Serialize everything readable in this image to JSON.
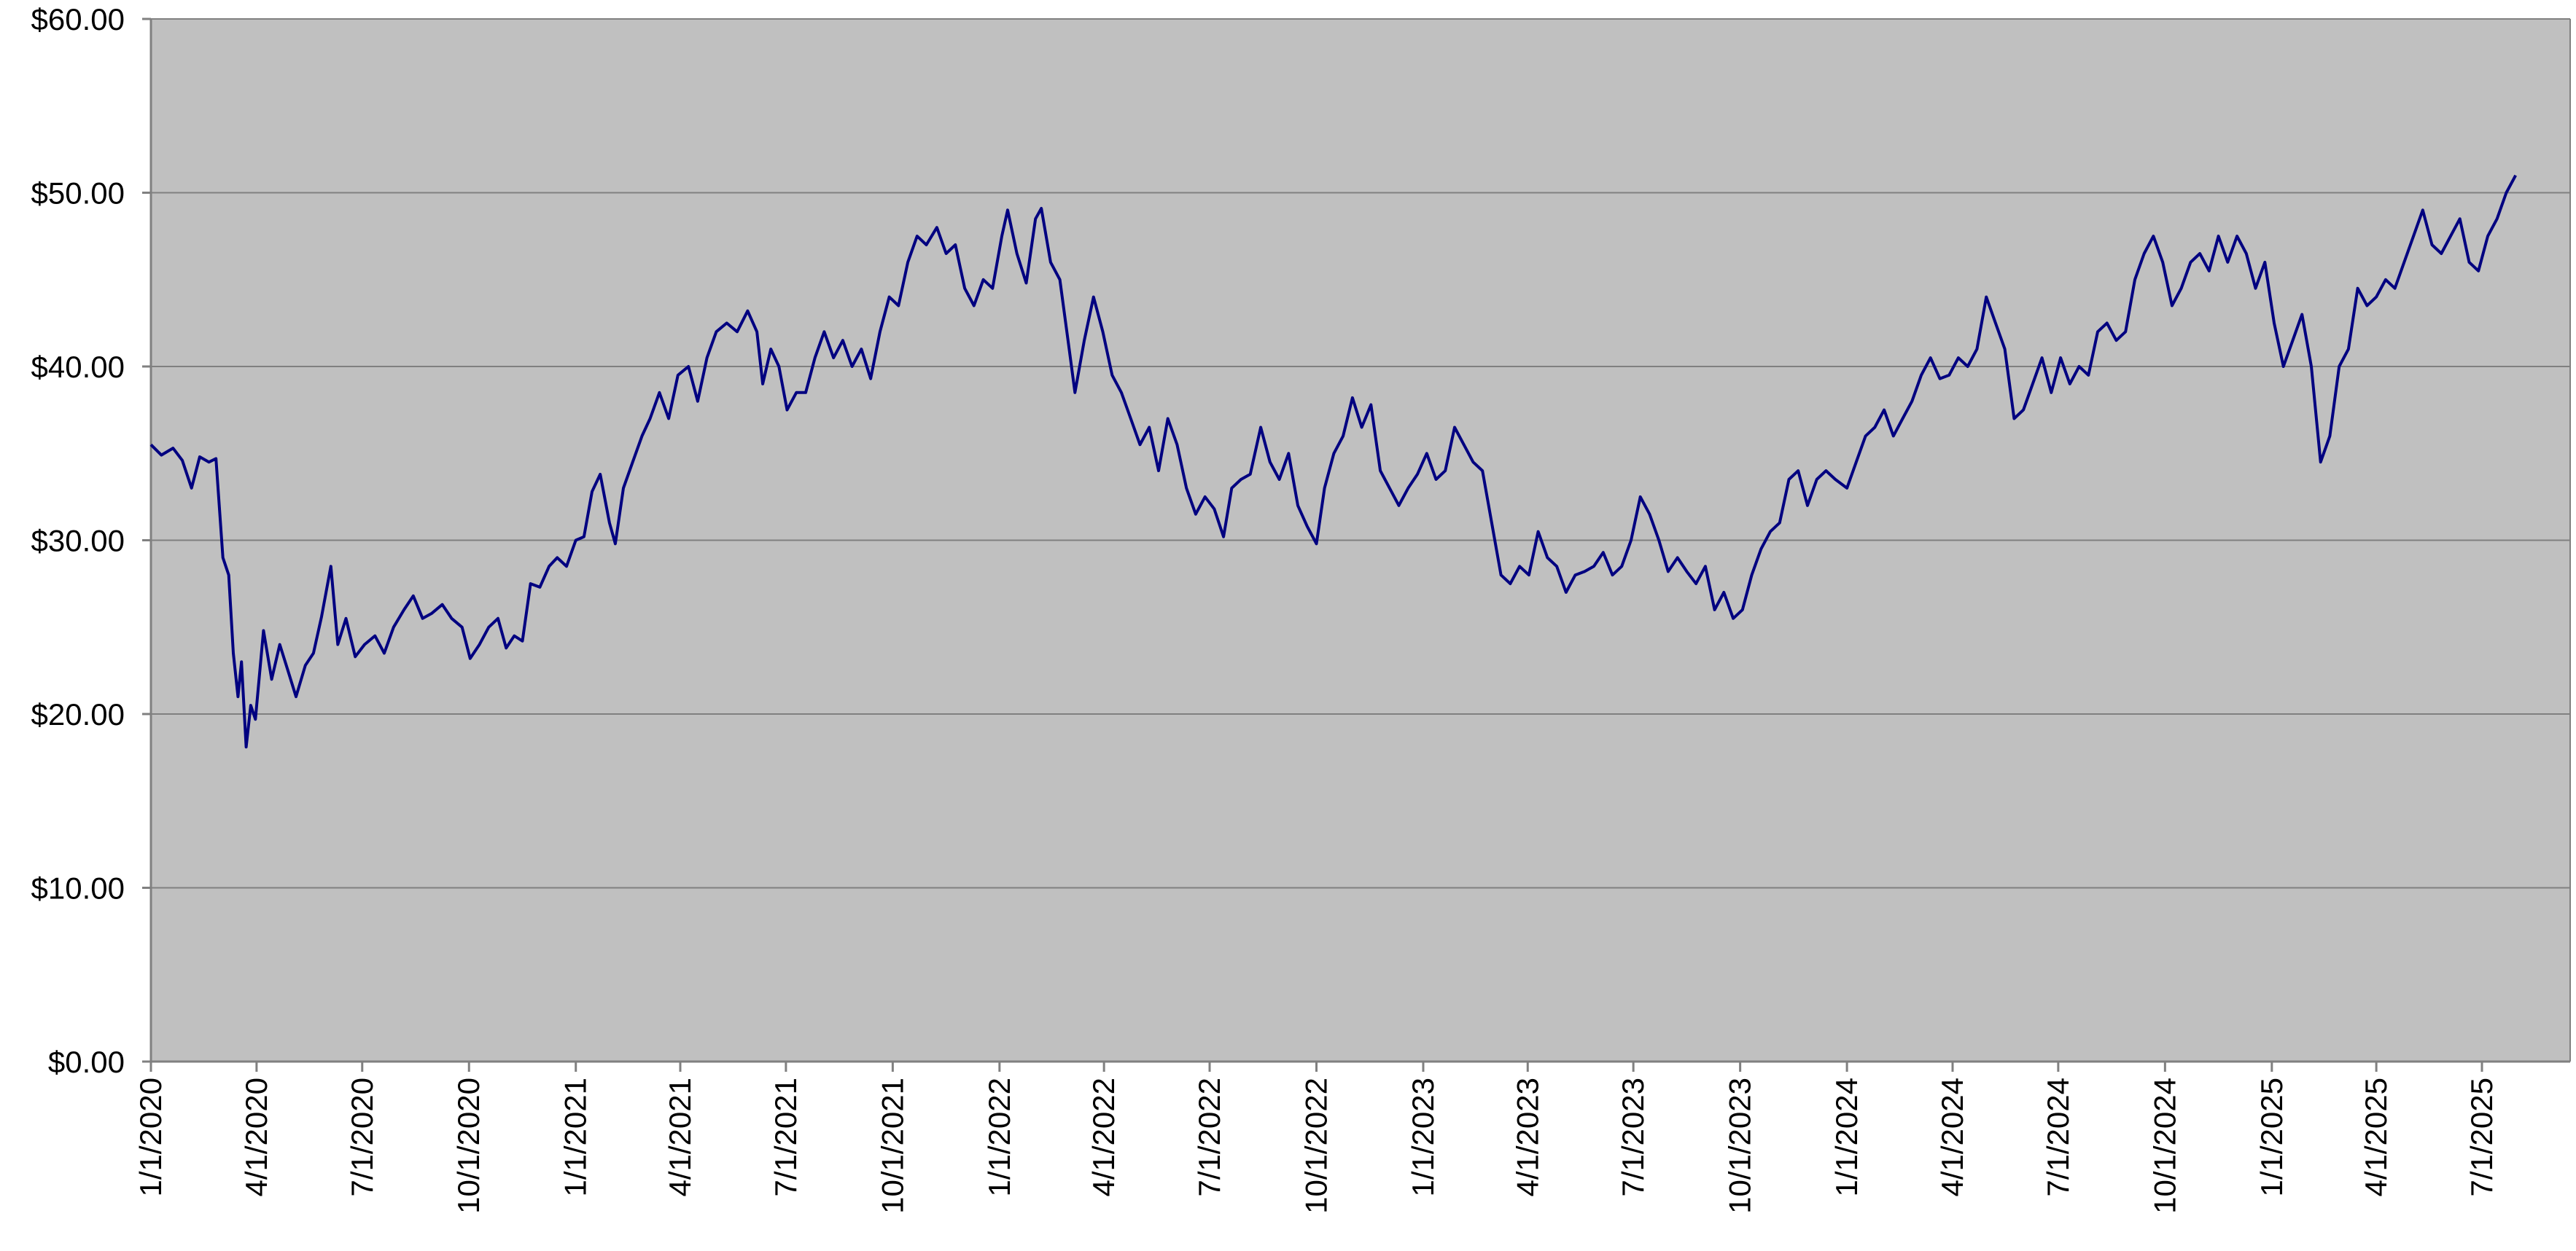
{
  "chart_data": {
    "type": "line",
    "title": "",
    "xlabel": "",
    "ylabel": "",
    "ylim": [
      0,
      60
    ],
    "xlim": [
      "2020-01-01",
      "2025-09-15"
    ],
    "grid": {
      "horizontal": true,
      "vertical": false
    },
    "legend": "none",
    "colors": {
      "plot_background": "#c0c0c0",
      "line": "#000080",
      "grid": "#808080",
      "axis": "#808080"
    },
    "y_tick_labels": [
      "$0.00",
      "$10.00",
      "$20.00",
      "$30.00",
      "$40.00",
      "$50.00",
      "$60.00"
    ],
    "y_ticks": [
      0,
      10,
      20,
      30,
      40,
      50,
      60
    ],
    "x_tick_labels": [
      "1/1/2020",
      "4/1/2020",
      "7/1/2020",
      "10/1/2020",
      "1/1/2021",
      "4/1/2021",
      "7/1/2021",
      "10/1/2021",
      "1/1/2022",
      "4/1/2022",
      "7/1/2022",
      "10/1/2022",
      "1/1/2023",
      "4/1/2023",
      "7/1/2023",
      "10/1/2023",
      "1/1/2024",
      "4/1/2024",
      "7/1/2024",
      "10/1/2024",
      "1/1/2025",
      "4/1/2025",
      "7/1/2025"
    ],
    "x_ticks": [
      "2020-01-01",
      "2020-04-01",
      "2020-07-01",
      "2020-10-01",
      "2021-01-01",
      "2021-04-01",
      "2021-07-01",
      "2021-10-01",
      "2022-01-01",
      "2022-04-01",
      "2022-07-01",
      "2022-10-01",
      "2023-01-01",
      "2023-04-01",
      "2023-07-01",
      "2023-10-01",
      "2024-01-01",
      "2024-04-01",
      "2024-07-01",
      "2024-10-01",
      "2025-01-01",
      "2025-04-01",
      "2025-07-01"
    ],
    "series": [
      {
        "name": "",
        "points": [
          [
            "2020-01-01",
            35.5
          ],
          [
            "2020-01-10",
            34.9
          ],
          [
            "2020-01-20",
            35.3
          ],
          [
            "2020-01-28",
            34.6
          ],
          [
            "2020-02-05",
            33.0
          ],
          [
            "2020-02-12",
            34.8
          ],
          [
            "2020-02-20",
            34.5
          ],
          [
            "2020-02-26",
            34.7
          ],
          [
            "2020-03-03",
            29.0
          ],
          [
            "2020-03-08",
            28.0
          ],
          [
            "2020-03-12",
            23.5
          ],
          [
            "2020-03-16",
            21.0
          ],
          [
            "2020-03-19",
            23.0
          ],
          [
            "2020-03-23",
            18.1
          ],
          [
            "2020-03-27",
            20.5
          ],
          [
            "2020-03-31",
            19.7
          ],
          [
            "2020-04-07",
            24.8
          ],
          [
            "2020-04-14",
            22.0
          ],
          [
            "2020-04-21",
            24.0
          ],
          [
            "2020-04-28",
            22.5
          ],
          [
            "2020-05-05",
            21.0
          ],
          [
            "2020-05-13",
            22.8
          ],
          [
            "2020-05-20",
            23.5
          ],
          [
            "2020-05-27",
            25.6
          ],
          [
            "2020-06-04",
            28.5
          ],
          [
            "2020-06-10",
            24.0
          ],
          [
            "2020-06-17",
            25.5
          ],
          [
            "2020-06-25",
            23.3
          ],
          [
            "2020-07-03",
            24.0
          ],
          [
            "2020-07-12",
            24.5
          ],
          [
            "2020-07-20",
            23.5
          ],
          [
            "2020-07-28",
            25.0
          ],
          [
            "2020-08-06",
            26.0
          ],
          [
            "2020-08-14",
            26.8
          ],
          [
            "2020-08-22",
            25.5
          ],
          [
            "2020-08-30",
            25.8
          ],
          [
            "2020-09-08",
            26.3
          ],
          [
            "2020-09-16",
            25.5
          ],
          [
            "2020-09-25",
            25.0
          ],
          [
            "2020-10-02",
            23.2
          ],
          [
            "2020-10-10",
            24.0
          ],
          [
            "2020-10-18",
            25.0
          ],
          [
            "2020-10-26",
            25.5
          ],
          [
            "2020-11-02",
            23.8
          ],
          [
            "2020-11-09",
            24.5
          ],
          [
            "2020-11-16",
            24.2
          ],
          [
            "2020-11-23",
            27.5
          ],
          [
            "2020-12-01",
            27.3
          ],
          [
            "2020-12-09",
            28.5
          ],
          [
            "2020-12-16",
            29.0
          ],
          [
            "2020-12-24",
            28.5
          ],
          [
            "2021-01-01",
            30.0
          ],
          [
            "2021-01-08",
            30.2
          ],
          [
            "2021-01-15",
            32.8
          ],
          [
            "2021-01-22",
            33.8
          ],
          [
            "2021-01-30",
            31.0
          ],
          [
            "2021-02-04",
            29.8
          ],
          [
            "2021-02-11",
            33.0
          ],
          [
            "2021-02-19",
            34.5
          ],
          [
            "2021-02-27",
            36.0
          ],
          [
            "2021-03-06",
            37.0
          ],
          [
            "2021-03-14",
            38.5
          ],
          [
            "2021-03-22",
            37.0
          ],
          [
            "2021-03-30",
            39.5
          ],
          [
            "2021-04-08",
            40.0
          ],
          [
            "2021-04-16",
            38.0
          ],
          [
            "2021-04-24",
            40.5
          ],
          [
            "2021-05-02",
            42.0
          ],
          [
            "2021-05-11",
            42.5
          ],
          [
            "2021-05-20",
            42.0
          ],
          [
            "2021-05-29",
            43.2
          ],
          [
            "2021-06-06",
            42.0
          ],
          [
            "2021-06-11",
            39.0
          ],
          [
            "2021-06-18",
            41.0
          ],
          [
            "2021-06-25",
            40.0
          ],
          [
            "2021-07-02",
            37.5
          ],
          [
            "2021-07-10",
            38.5
          ],
          [
            "2021-07-18",
            38.5
          ],
          [
            "2021-07-26",
            40.5
          ],
          [
            "2021-08-03",
            42.0
          ],
          [
            "2021-08-11",
            40.5
          ],
          [
            "2021-08-19",
            41.5
          ],
          [
            "2021-08-27",
            40.0
          ],
          [
            "2021-09-04",
            41.0
          ],
          [
            "2021-09-12",
            39.3
          ],
          [
            "2021-09-20",
            42.0
          ],
          [
            "2021-09-28",
            44.0
          ],
          [
            "2021-10-06",
            43.5
          ],
          [
            "2021-10-14",
            46.0
          ],
          [
            "2021-10-22",
            47.5
          ],
          [
            "2021-10-30",
            47.0
          ],
          [
            "2021-11-08",
            48.0
          ],
          [
            "2021-11-16",
            46.5
          ],
          [
            "2021-11-24",
            47.0
          ],
          [
            "2021-12-02",
            44.5
          ],
          [
            "2021-12-10",
            43.5
          ],
          [
            "2021-12-18",
            45.0
          ],
          [
            "2021-12-26",
            44.5
          ],
          [
            "2022-01-03",
            47.5
          ],
          [
            "2022-01-08",
            49.0
          ],
          [
            "2022-01-16",
            46.5
          ],
          [
            "2022-01-24",
            44.8
          ],
          [
            "2022-02-01",
            48.5
          ],
          [
            "2022-02-06",
            49.1
          ],
          [
            "2022-02-14",
            46.0
          ],
          [
            "2022-02-22",
            45.0
          ],
          [
            "2022-03-02",
            41.0
          ],
          [
            "2022-03-07",
            38.5
          ],
          [
            "2022-03-15",
            41.5
          ],
          [
            "2022-03-23",
            44.0
          ],
          [
            "2022-03-31",
            42.0
          ],
          [
            "2022-04-08",
            39.5
          ],
          [
            "2022-04-16",
            38.5
          ],
          [
            "2022-04-24",
            37.0
          ],
          [
            "2022-05-02",
            35.5
          ],
          [
            "2022-05-10",
            36.5
          ],
          [
            "2022-05-18",
            34.0
          ],
          [
            "2022-05-26",
            37.0
          ],
          [
            "2022-06-03",
            35.5
          ],
          [
            "2022-06-11",
            33.0
          ],
          [
            "2022-06-19",
            31.5
          ],
          [
            "2022-06-27",
            32.5
          ],
          [
            "2022-07-05",
            31.8
          ],
          [
            "2022-07-13",
            30.2
          ],
          [
            "2022-07-20",
            33.0
          ],
          [
            "2022-07-28",
            33.5
          ],
          [
            "2022-08-05",
            33.8
          ],
          [
            "2022-08-14",
            36.5
          ],
          [
            "2022-08-22",
            34.5
          ],
          [
            "2022-08-30",
            33.5
          ],
          [
            "2022-09-07",
            35.0
          ],
          [
            "2022-09-15",
            32.0
          ],
          [
            "2022-09-23",
            30.8
          ],
          [
            "2022-10-01",
            29.8
          ],
          [
            "2022-10-08",
            33.0
          ],
          [
            "2022-10-16",
            35.0
          ],
          [
            "2022-10-24",
            36.0
          ],
          [
            "2022-11-01",
            38.2
          ],
          [
            "2022-11-09",
            36.5
          ],
          [
            "2022-11-17",
            37.8
          ],
          [
            "2022-11-25",
            34.0
          ],
          [
            "2022-12-03",
            33.0
          ],
          [
            "2022-12-11",
            32.0
          ],
          [
            "2022-12-19",
            33.0
          ],
          [
            "2022-12-27",
            33.8
          ],
          [
            "2023-01-04",
            35.0
          ],
          [
            "2023-01-12",
            33.5
          ],
          [
            "2023-01-20",
            34.0
          ],
          [
            "2023-01-28",
            36.5
          ],
          [
            "2023-02-05",
            35.5
          ],
          [
            "2023-02-13",
            34.5
          ],
          [
            "2023-02-21",
            34.0
          ],
          [
            "2023-03-01",
            31.0
          ],
          [
            "2023-03-09",
            28.0
          ],
          [
            "2023-03-17",
            27.5
          ],
          [
            "2023-03-25",
            28.5
          ],
          [
            "2023-04-02",
            28.0
          ],
          [
            "2023-04-10",
            30.5
          ],
          [
            "2023-04-18",
            29.0
          ],
          [
            "2023-04-26",
            28.5
          ],
          [
            "2023-05-04",
            27.0
          ],
          [
            "2023-05-12",
            28.0
          ],
          [
            "2023-05-20",
            28.2
          ],
          [
            "2023-05-28",
            28.5
          ],
          [
            "2023-06-05",
            29.3
          ],
          [
            "2023-06-13",
            28.0
          ],
          [
            "2023-06-21",
            28.5
          ],
          [
            "2023-06-29",
            30.0
          ],
          [
            "2023-07-07",
            32.5
          ],
          [
            "2023-07-15",
            31.5
          ],
          [
            "2023-07-23",
            30.0
          ],
          [
            "2023-07-31",
            28.2
          ],
          [
            "2023-08-08",
            29.0
          ],
          [
            "2023-08-16",
            28.2
          ],
          [
            "2023-08-24",
            27.5
          ],
          [
            "2023-09-01",
            28.5
          ],
          [
            "2023-09-09",
            26.0
          ],
          [
            "2023-09-17",
            27.0
          ],
          [
            "2023-09-25",
            25.5
          ],
          [
            "2023-10-03",
            26.0
          ],
          [
            "2023-10-11",
            28.0
          ],
          [
            "2023-10-19",
            29.5
          ],
          [
            "2023-10-27",
            30.5
          ],
          [
            "2023-11-04",
            31.0
          ],
          [
            "2023-11-12",
            33.5
          ],
          [
            "2023-11-20",
            34.0
          ],
          [
            "2023-11-28",
            32.0
          ],
          [
            "2023-12-06",
            33.5
          ],
          [
            "2023-12-14",
            34.0
          ],
          [
            "2023-12-22",
            33.5
          ],
          [
            "2024-01-01",
            33.0
          ],
          [
            "2024-01-09",
            34.5
          ],
          [
            "2024-01-17",
            36.0
          ],
          [
            "2024-01-25",
            36.5
          ],
          [
            "2024-02-02",
            37.5
          ],
          [
            "2024-02-10",
            36.0
          ],
          [
            "2024-02-18",
            37.0
          ],
          [
            "2024-02-26",
            38.0
          ],
          [
            "2024-03-05",
            39.5
          ],
          [
            "2024-03-13",
            40.5
          ],
          [
            "2024-03-21",
            39.3
          ],
          [
            "2024-03-29",
            39.5
          ],
          [
            "2024-04-06",
            40.5
          ],
          [
            "2024-04-14",
            40.0
          ],
          [
            "2024-04-22",
            41.0
          ],
          [
            "2024-04-30",
            44.0
          ],
          [
            "2024-05-08",
            42.5
          ],
          [
            "2024-05-16",
            41.0
          ],
          [
            "2024-05-24",
            37.0
          ],
          [
            "2024-06-01",
            37.5
          ],
          [
            "2024-06-09",
            39.0
          ],
          [
            "2024-06-17",
            40.5
          ],
          [
            "2024-06-25",
            38.5
          ],
          [
            "2024-07-03",
            40.5
          ],
          [
            "2024-07-11",
            39.0
          ],
          [
            "2024-07-19",
            40.0
          ],
          [
            "2024-07-27",
            39.5
          ],
          [
            "2024-08-04",
            42.0
          ],
          [
            "2024-08-12",
            42.5
          ],
          [
            "2024-08-20",
            41.5
          ],
          [
            "2024-08-28",
            42.0
          ],
          [
            "2024-09-05",
            45.0
          ],
          [
            "2024-09-13",
            46.5
          ],
          [
            "2024-09-21",
            47.5
          ],
          [
            "2024-09-29",
            46.0
          ],
          [
            "2024-10-07",
            43.5
          ],
          [
            "2024-10-15",
            44.5
          ],
          [
            "2024-10-23",
            46.0
          ],
          [
            "2024-10-31",
            46.5
          ],
          [
            "2024-11-08",
            45.5
          ],
          [
            "2024-11-16",
            47.5
          ],
          [
            "2024-11-24",
            46.0
          ],
          [
            "2024-12-02",
            47.5
          ],
          [
            "2024-12-10",
            46.5
          ],
          [
            "2024-12-18",
            44.5
          ],
          [
            "2024-12-26",
            46.0
          ],
          [
            "2025-01-03",
            42.5
          ],
          [
            "2025-01-11",
            40.0
          ],
          [
            "2025-01-19",
            41.5
          ],
          [
            "2025-01-27",
            43.0
          ],
          [
            "2025-02-04",
            40.0
          ],
          [
            "2025-02-12",
            34.5
          ],
          [
            "2025-02-20",
            36.0
          ],
          [
            "2025-02-28",
            40.0
          ],
          [
            "2025-03-08",
            41.0
          ],
          [
            "2025-03-16",
            44.5
          ],
          [
            "2025-03-24",
            43.5
          ],
          [
            "2025-04-01",
            44.0
          ],
          [
            "2025-04-09",
            45.0
          ],
          [
            "2025-04-17",
            44.5
          ],
          [
            "2025-04-25",
            46.0
          ],
          [
            "2025-05-03",
            47.5
          ],
          [
            "2025-05-11",
            49.0
          ],
          [
            "2025-05-19",
            47.0
          ],
          [
            "2025-05-27",
            46.5
          ],
          [
            "2025-06-04",
            47.5
          ],
          [
            "2025-06-12",
            48.5
          ],
          [
            "2025-06-20",
            46.0
          ],
          [
            "2025-06-28",
            45.5
          ],
          [
            "2025-07-06",
            47.5
          ],
          [
            "2025-07-14",
            48.5
          ],
          [
            "2025-07-22",
            50.0
          ],
          [
            "2025-07-30",
            51.0
          ]
        ]
      }
    ]
  }
}
